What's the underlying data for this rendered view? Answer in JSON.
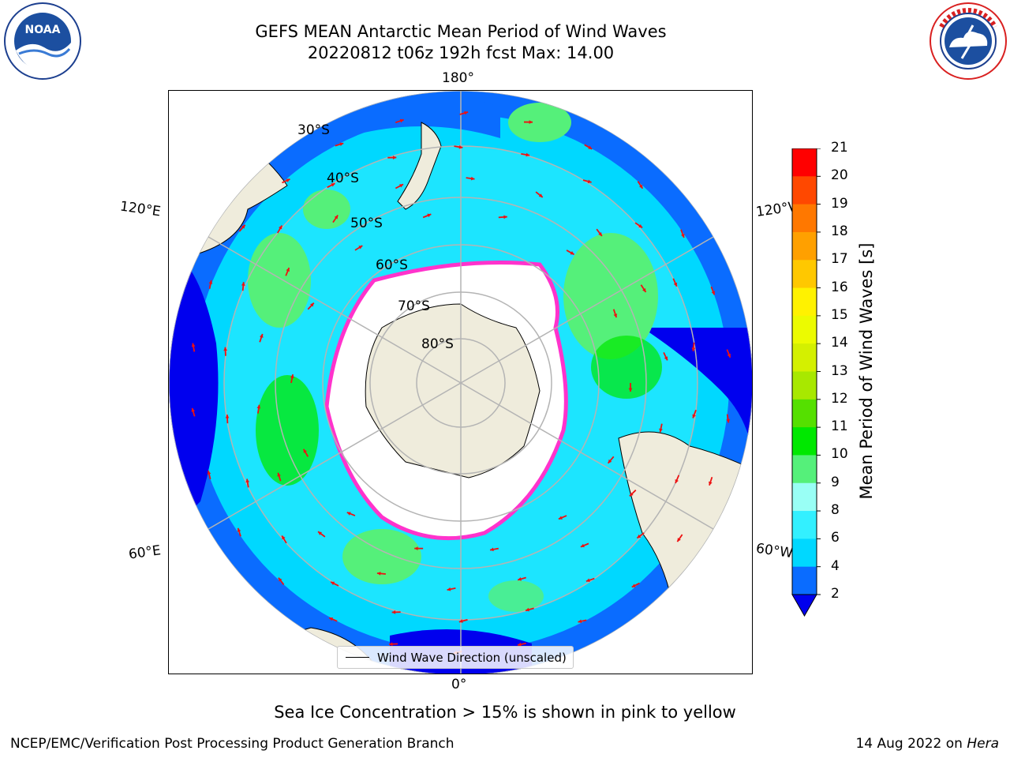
{
  "title": {
    "line1": "GEFS MEAN Antarctic Mean Period of Wind Waves",
    "line2": "20220812 t06z 192h fcst   Max: 14.00"
  },
  "logos": {
    "left": {
      "text": "NOAA",
      "ring_text": "NATIONAL OCEANIC AND ATMOSPHERIC ADMINISTRATION · U.S. DEPARTMENT OF COMMERCE"
    },
    "right": {
      "ring_text": "NATIONAL WEATHER SERVICE"
    }
  },
  "map": {
    "projection": "south polar stereographic",
    "longitude_labels": {
      "top": "180°",
      "bottom": "0°",
      "left_upper": "120°E",
      "left_lower": "60°E",
      "right_upper": "120°W",
      "right_lower": "60°W"
    },
    "latitude_labels": [
      "30°S",
      "40°S",
      "50°S",
      "60°S",
      "70°S",
      "80°S"
    ],
    "legend_label": "Wind Wave Direction (unscaled)",
    "colors": {
      "land": "#efecdc",
      "ice_free": "#ffffff",
      "ice_edge": "#ff33cc",
      "grid": "#b4b4b4"
    }
  },
  "colorbar": {
    "label": "Mean Period of Wind Waves [s]",
    "ticks": [
      "2",
      "4",
      "6",
      "8",
      "9",
      "10",
      "11",
      "12",
      "13",
      "14",
      "15",
      "16",
      "17",
      "18",
      "19",
      "20",
      "21"
    ],
    "colors": [
      "#0000ff",
      "#0a6cff",
      "#00d8ff",
      "#33f0ff",
      "#99fff5",
      "#55f07a",
      "#00e800",
      "#55e000",
      "#a8e800",
      "#d4f000",
      "#ecfb00",
      "#fff200",
      "#ffc800",
      "#ffa000",
      "#ff7800",
      "#ff4800",
      "#ff0000"
    ],
    "under_color": "#0000ee"
  },
  "note": "Sea Ice Concentration > 15% is shown in pink to yellow",
  "footer": {
    "left": "NCEP/EMC/Verification Post Processing Product Generation Branch",
    "date": "14 Aug 2022 on ",
    "host": "Hera"
  }
}
